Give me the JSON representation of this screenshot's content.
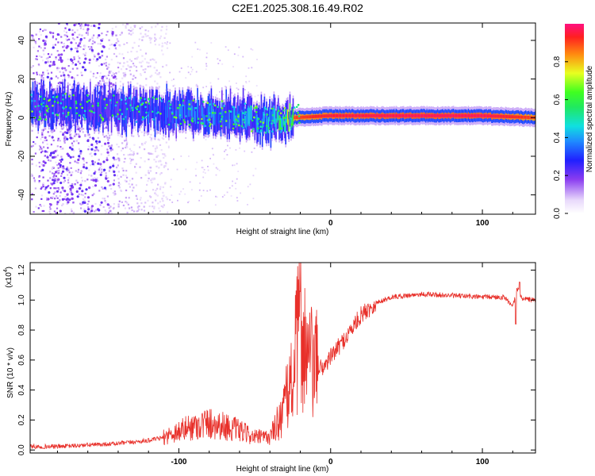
{
  "title": "C2E1.2025.308.16.49.R02",
  "chart_data": [
    {
      "type": "heatmap",
      "title": "C2E1.2025.308.16.49.R02",
      "xlabel": "Height of straight line (km)",
      "ylabel": "Frequency (Hz)",
      "xlim": [
        -198,
        135
      ],
      "ylim": [
        -50,
        49
      ],
      "xticks": [
        -100,
        0,
        100
      ],
      "xtick_labels": [
        "-100",
        "0",
        "100"
      ],
      "yticks": [
        40,
        20,
        0,
        -20,
        -40
      ],
      "ytick_labels": [
        "40",
        "20",
        "0",
        "-20",
        "-40"
      ],
      "colorbar": {
        "label": "Normalized spectral amplitude",
        "range": [
          0,
          1
        ],
        "ticks": [
          0,
          0.2,
          0.4,
          0.6,
          0.8
        ],
        "tick_labels": [
          "0.0",
          "0.2",
          "0.4",
          "0.6",
          "0.8"
        ]
      },
      "band": {
        "description_x_km": [
          -198,
          -150,
          -100,
          -60,
          -40,
          -25,
          0,
          50,
          100,
          135
        ],
        "center_hz": [
          6,
          5,
          3,
          1,
          -2,
          0,
          1,
          1,
          1,
          0
        ],
        "peak_amplitude": [
          0.35,
          0.35,
          0.4,
          0.45,
          0.5,
          0.9,
          0.95,
          0.97,
          0.97,
          0.9
        ]
      },
      "grid": false
    },
    {
      "type": "line",
      "xlabel": "Height of straight line (km)",
      "ylabel": "SNR (10 * v/v)",
      "multiplier_label": "(x10",
      "multiplier_exp": "4",
      "xlim": [
        -198,
        135
      ],
      "ylim": [
        -0.02,
        1.25
      ],
      "xticks": [
        -100,
        0,
        100
      ],
      "xtick_labels": [
        "-100",
        "0",
        "100"
      ],
      "yticks": [
        0,
        0.2,
        0.4,
        0.6,
        0.8,
        1.0,
        1.2
      ],
      "ytick_labels": [
        "0.0",
        "0.2",
        "0.4",
        "0.6",
        "0.8",
        "1.0",
        "1.2"
      ],
      "series": [
        {
          "name": "SNR",
          "color": "#e8302a",
          "x": [
            -198,
            -180,
            -160,
            -140,
            -120,
            -110,
            -100,
            -90,
            -80,
            -70,
            -60,
            -50,
            -40,
            -35,
            -30,
            -25,
            -20,
            -15,
            -10,
            -5,
            0,
            10,
            20,
            30,
            40,
            50,
            60,
            80,
            100,
            115,
            120,
            123,
            126,
            135
          ],
          "y": [
            0.02,
            0.02,
            0.03,
            0.04,
            0.06,
            0.08,
            0.12,
            0.15,
            0.17,
            0.15,
            0.12,
            0.08,
            0.08,
            0.18,
            0.3,
            0.5,
            0.85,
            0.6,
            0.55,
            0.55,
            0.62,
            0.75,
            0.9,
            0.98,
            1.02,
            1.03,
            1.04,
            1.03,
            1.02,
            1.02,
            0.95,
            1.08,
            1.01,
            1.0
          ]
        }
      ],
      "grid": false
    }
  ]
}
